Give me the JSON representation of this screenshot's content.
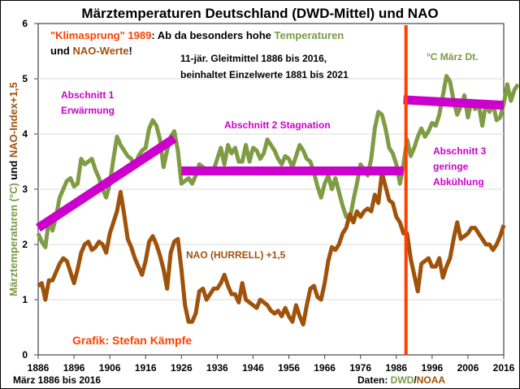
{
  "chart_data": {
    "type": "line",
    "title": "Märztemperaturen Deutschland (DWD-Mittel) und NAO",
    "ylabel_parts": [
      {
        "text": "Märztemperaturen (°C) ",
        "color": "#7a9a45"
      },
      {
        "text": "und ",
        "color": "#000000"
      },
      {
        "text": "NAO-Index+1,5",
        "color": "#a0520a"
      }
    ],
    "xlabel": "",
    "xlim": [
      1886,
      2016
    ],
    "ylim": [
      0,
      6
    ],
    "yticks": [
      0,
      1,
      2,
      3,
      4,
      5,
      6
    ],
    "xticks": [
      1886,
      1896,
      1906,
      1916,
      1926,
      1936,
      1946,
      1956,
      1966,
      1976,
      1986,
      1996,
      2006,
      2016
    ],
    "grid": true,
    "colors": {
      "temperature": "#7f9c45",
      "nao": "#a0520a",
      "trend": "#cc00cc",
      "marker_1989": "#ff4000",
      "red_text": "#ff4000",
      "green_text": "#7a9a45",
      "brown_text": "#a0520a",
      "magenta_text": "#cc00cc"
    },
    "series": [
      {
        "name": "°C März Dt.",
        "start_year": 1886,
        "values": [
          2.2,
          2.05,
          1.95,
          2.45,
          2.25,
          2.5,
          2.85,
          3.0,
          3.15,
          3.2,
          3.05,
          3.1,
          3.55,
          3.45,
          3.5,
          3.55,
          3.35,
          3.2,
          3.0,
          2.85,
          3.1,
          3.55,
          3.95,
          3.8,
          3.7,
          3.6,
          3.55,
          3.4,
          3.6,
          3.7,
          3.75,
          4.1,
          4.25,
          4.15,
          3.9,
          3.4,
          3.7,
          3.95,
          4.05,
          3.7,
          3.1,
          3.15,
          3.2,
          3.1,
          3.25,
          3.45,
          3.4,
          3.35,
          3.3,
          3.35,
          3.55,
          3.75,
          3.45,
          3.8,
          3.65,
          3.75,
          3.5,
          3.5,
          3.8,
          3.5,
          3.75,
          3.7,
          3.55,
          3.65,
          3.9,
          3.8,
          3.7,
          3.55,
          3.45,
          3.6,
          3.55,
          3.4,
          3.6,
          3.8,
          3.7,
          3.55,
          3.5,
          3.3,
          3.05,
          2.85,
          3.1,
          3.25,
          3.0,
          3.2,
          2.95,
          2.7,
          2.5,
          2.45,
          2.8,
          3.1,
          3.45,
          3.35,
          3.25,
          3.55,
          4.1,
          4.4,
          4.35,
          4.1,
          3.75,
          3.65,
          3.45,
          3.1,
          3.45,
          3.9,
          3.6,
          3.75,
          3.95,
          4.1,
          3.95,
          4.05,
          4.2,
          4.15,
          4.35,
          4.7,
          5.05,
          4.95,
          4.6,
          4.35,
          4.5,
          4.7,
          4.3,
          4.6,
          4.45,
          4.55,
          4.15,
          4.55,
          4.4,
          4.55,
          4.25,
          4.3,
          4.55,
          4.9,
          4.6,
          4.8,
          4.9
        ]
      },
      {
        "name": "NAO (HURRELL) +1,5",
        "start_year": 1886,
        "values": [
          1.25,
          1.3,
          1.0,
          1.35,
          1.35,
          1.5,
          1.65,
          1.75,
          1.7,
          1.5,
          1.3,
          1.55,
          1.85,
          2.0,
          2.05,
          1.9,
          1.95,
          2.05,
          2.0,
          1.85,
          2.2,
          2.4,
          2.6,
          2.95,
          2.55,
          2.1,
          1.95,
          1.75,
          1.6,
          1.45,
          1.7,
          2.05,
          2.15,
          2.0,
          1.8,
          1.55,
          1.2,
          1.85,
          2.05,
          2.1,
          1.55,
          0.9,
          0.6,
          0.6,
          0.75,
          1.15,
          1.2,
          1.0,
          1.1,
          1.2,
          1.2,
          1.3,
          1.45,
          1.25,
          1.1,
          1.1,
          0.95,
          1.3,
          1.0,
          0.95,
          0.9,
          0.85,
          1.0,
          0.95,
          0.9,
          0.8,
          0.75,
          0.8,
          0.7,
          0.85,
          0.7,
          0.6,
          0.9,
          0.7,
          0.55,
          0.9,
          1.2,
          1.25,
          1.05,
          1.0,
          1.3,
          1.7,
          1.95,
          1.9,
          2.0,
          2.2,
          2.3,
          2.55,
          2.4,
          2.6,
          2.5,
          2.6,
          2.65,
          2.6,
          2.9,
          2.75,
          3.3,
          3.05,
          2.8,
          2.75,
          2.5,
          2.4,
          2.2,
          2.2,
          1.75,
          1.45,
          1.15,
          1.65,
          1.7,
          1.75,
          1.6,
          1.6,
          1.75,
          1.4,
          1.6,
          1.75,
          2.1,
          2.4,
          2.1,
          2.15,
          2.2,
          2.3,
          2.3,
          2.2,
          2.1,
          2.0,
          2.0,
          1.9,
          2.0,
          2.15,
          2.35
        ]
      }
    ],
    "trend_lines": [
      {
        "name": "Abschnitt 1 Erwärmung",
        "from": [
          1886,
          2.3
        ],
        "to": [
          1924,
          3.92
        ]
      },
      {
        "name": "Abschnitt 2 Stagnation",
        "from": [
          1926,
          3.33
        ],
        "to": [
          1988,
          3.33
        ]
      },
      {
        "name": "Abschnitt 3 geringe Abkühlung",
        "from": [
          1988,
          4.62
        ],
        "to": [
          2016,
          4.52
        ]
      }
    ],
    "marker_line": {
      "label": "Klimasprung 1989",
      "x": 1988.7
    },
    "annotations": {
      "headline_line1": [
        {
          "text": "\"Klimasprung\" 1989",
          "color": "#ff4000"
        },
        {
          "text": ": Ab da besonders hohe ",
          "color": "#000000"
        },
        {
          "text": "Temperaturen",
          "color": "#7a9a45"
        }
      ],
      "headline_line2": [
        {
          "text": "und ",
          "color": "#000000"
        },
        {
          "text": "NAO-Werte",
          "color": "#a0520a"
        },
        {
          "text": "!",
          "color": "#000000"
        }
      ],
      "smoothing_line1": "11-jär. Gleitmittel 1886 bis 2016,",
      "smoothing_line2": "beinhaltet Einzelwerte 1881 bis 2021",
      "temp_legend": "°C März Dt.",
      "section1_line1": "Abschnitt 1",
      "section1_line2": "Erwärmung",
      "section2": "Abschnitt 2 Stagnation",
      "section3_line1": "Abschnitt 3",
      "section3_line2": "geringe",
      "section3_line3": "Abkühlung",
      "nao_label": "NAO (HURRELL) +1,5",
      "author": "Grafik: Stefan Kämpfe",
      "period": "März 1886 bis 2016",
      "source_parts": [
        {
          "text": "Daten: ",
          "color": "#000000"
        },
        {
          "text": "DWD",
          "color": "#7a9a45"
        },
        {
          "text": "/",
          "color": "#000000"
        },
        {
          "text": "NOAA",
          "color": "#a0520a"
        }
      ]
    }
  }
}
